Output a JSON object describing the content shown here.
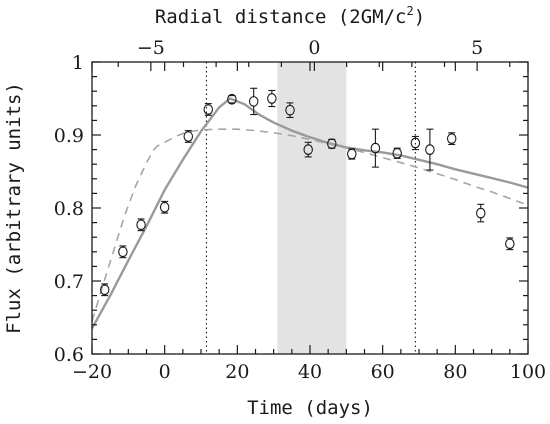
{
  "chart_data": {
    "type": "scatter",
    "xlabel": "Time (days)",
    "ylabel": "Flux (arbitrary units)",
    "top_axis_label_prefix": "Radial distance (2GM/c",
    "top_axis_label_sup": "2",
    "top_axis_label_suffix": ")",
    "xlim": [
      -20,
      100
    ],
    "ylim": [
      0.6,
      1.0
    ],
    "x_ticks": [
      -20,
      0,
      20,
      40,
      60,
      80,
      100
    ],
    "x_tick_labels": [
      "−20",
      "0",
      "20",
      "40",
      "60",
      "80",
      "100"
    ],
    "y_ticks": [
      0.6,
      0.7,
      0.8,
      0.9,
      1.0
    ],
    "y_tick_labels": [
      "0.6",
      "0.7",
      "0.8",
      "0.9",
      "1"
    ],
    "top_ticks": [
      -5,
      0,
      5
    ],
    "top_tick_labels": [
      "−5",
      "0",
      "5"
    ],
    "top_tick_time_positions": [
      -3.8,
      41.2,
      86.0
    ],
    "vertical_dotted_lines_x": [
      11.5,
      69.0
    ],
    "shaded_band_x": [
      31,
      50
    ],
    "grid": false,
    "series": [
      {
        "kind": "points",
        "x": [
          -16.5,
          -11.5,
          -6.5,
          0,
          6.5,
          12,
          18.5,
          24.5,
          29.5,
          34.5,
          39.5,
          46,
          51.5,
          58,
          64,
          69,
          73,
          79,
          87,
          95
        ],
        "y": [
          0.688,
          0.74,
          0.777,
          0.801,
          0.898,
          0.935,
          0.949,
          0.946,
          0.95,
          0.934,
          0.88,
          0.888,
          0.874,
          0.882,
          0.875,
          0.889,
          0.88,
          0.895,
          0.793,
          0.751
        ],
        "yerr": [
          0.008,
          0.008,
          0.008,
          0.008,
          0.008,
          0.008,
          0.005,
          0.018,
          0.011,
          0.01,
          0.01,
          0.006,
          0.007,
          0.026,
          0.007,
          0.009,
          0.028,
          0.008,
          0.012,
          0.008
        ]
      },
      {
        "kind": "solid-curve",
        "color": "#9a9a9a",
        "x": [
          -20,
          -15,
          -10,
          -5,
          0,
          5,
          10,
          15,
          18,
          22,
          26,
          30,
          35,
          40,
          45,
          50,
          55,
          60,
          65,
          70,
          75,
          80,
          85,
          90,
          95,
          100
        ],
        "y": [
          0.635,
          0.68,
          0.728,
          0.775,
          0.825,
          0.866,
          0.905,
          0.938,
          0.95,
          0.942,
          0.928,
          0.917,
          0.906,
          0.897,
          0.889,
          0.883,
          0.879,
          0.876,
          0.872,
          0.866,
          0.86,
          0.853,
          0.847,
          0.841,
          0.835,
          0.828
        ]
      },
      {
        "kind": "dashed-curve",
        "color": "#a6a6a6",
        "x": [
          -20,
          -17,
          -14,
          -11,
          -8,
          -5,
          -3,
          -2,
          0,
          3,
          6,
          10,
          15,
          20,
          25,
          30,
          35,
          40,
          45,
          50,
          55,
          60,
          65,
          70,
          75,
          80,
          85,
          90,
          95,
          100
        ],
        "y": [
          0.645,
          0.694,
          0.742,
          0.79,
          0.83,
          0.862,
          0.88,
          0.885,
          0.89,
          0.898,
          0.904,
          0.907,
          0.908,
          0.908,
          0.906,
          0.903,
          0.899,
          0.894,
          0.888,
          0.882,
          0.876,
          0.869,
          0.862,
          0.855,
          0.847,
          0.839,
          0.83,
          0.822,
          0.813,
          0.804
        ]
      }
    ]
  }
}
